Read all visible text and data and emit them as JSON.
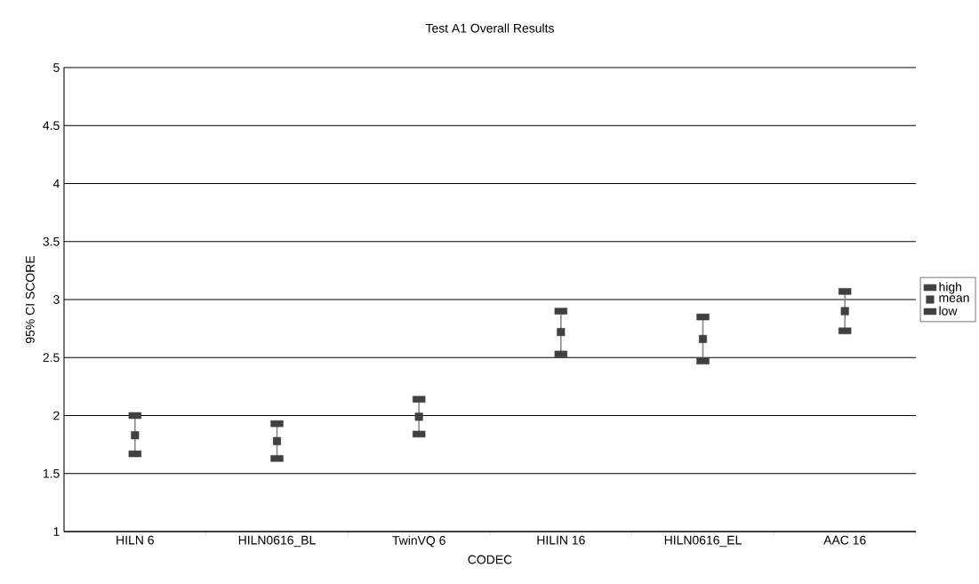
{
  "chart_data": {
    "type": "scatter",
    "title": "Test A1 Overall Results",
    "xlabel": "CODEC",
    "ylabel": "95% CI SCORE",
    "categories": [
      "HILN 6",
      "HILN0616_BL",
      "TwinVQ 6",
      "HILIN 16",
      "HILN0616_EL",
      "AAC 16"
    ],
    "series": [
      {
        "name": "high",
        "color": "#404040",
        "marker": "square",
        "values": [
          2.0,
          1.93,
          2.14,
          2.9,
          2.85,
          3.07
        ]
      },
      {
        "name": "mean",
        "color": "#404040",
        "marker": "square",
        "values": [
          1.83,
          1.78,
          1.99,
          2.72,
          2.66,
          2.9
        ]
      },
      {
        "name": "low",
        "color": "#404040",
        "marker": "square",
        "values": [
          1.67,
          1.63,
          1.84,
          2.53,
          2.47,
          2.73
        ]
      }
    ],
    "ylim": [
      1,
      5
    ],
    "yticks": [
      1,
      1.5,
      2,
      2.5,
      3,
      3.5,
      4,
      4.5,
      5
    ],
    "grid": "y",
    "legend": "right"
  }
}
